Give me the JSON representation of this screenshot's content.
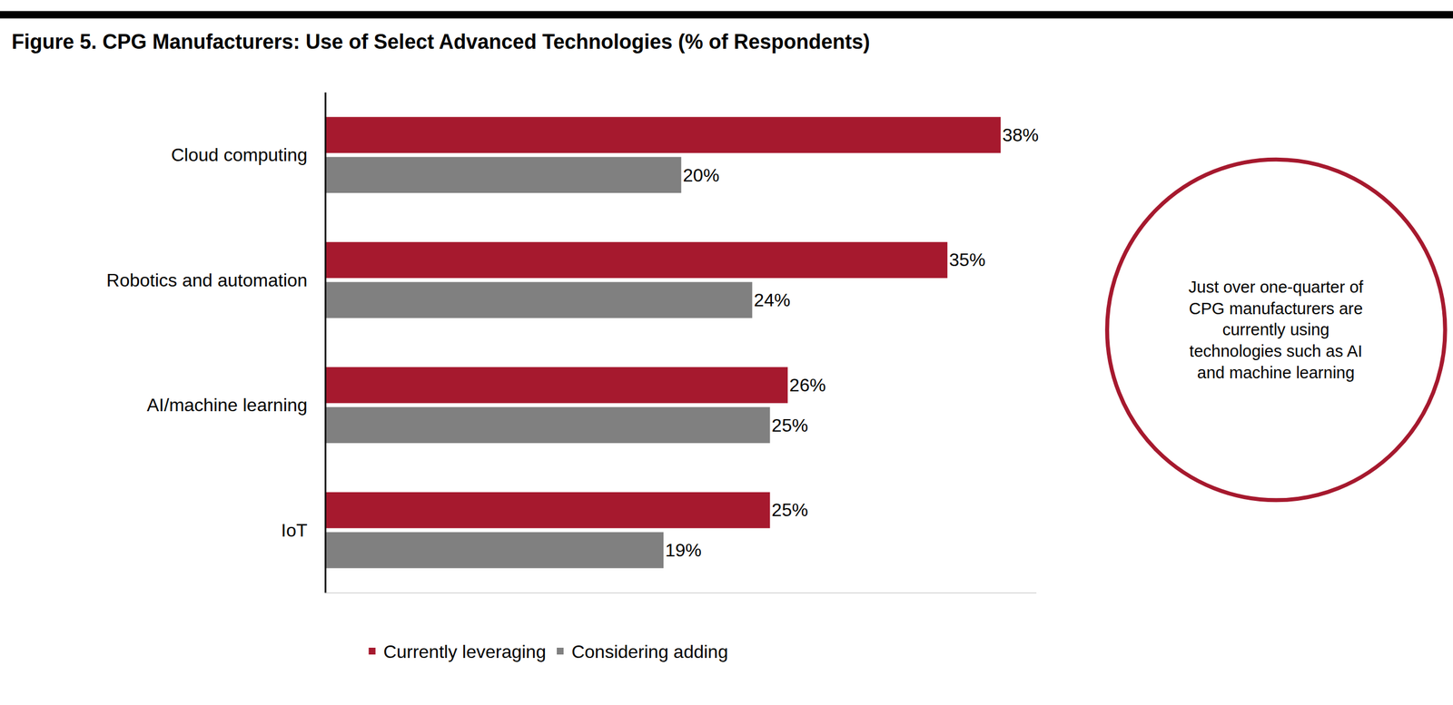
{
  "chart_data": {
    "type": "bar",
    "orientation": "horizontal",
    "title": "Figure 5. CPG Manufacturers: Use of Select Advanced Technologies (% of Respondents)",
    "categories": [
      "Cloud computing",
      "Robotics and automation",
      "AI/machine learning",
      "IoT"
    ],
    "series": [
      {
        "name": "Currently leveraging",
        "color": "#a6192e",
        "values": [
          38,
          35,
          26,
          25
        ],
        "value_labels": [
          "38%",
          "35%",
          "26%",
          "25%"
        ]
      },
      {
        "name": "Considering adding",
        "color": "#808080",
        "values": [
          20,
          24,
          25,
          19
        ],
        "value_labels": [
          "20%",
          "24%",
          "25%",
          "19%"
        ]
      }
    ],
    "xlim": [
      0,
      40
    ],
    "xticks": [],
    "tick_labels": "y",
    "grid": false,
    "data_labels": true,
    "legend": "bottom",
    "annotations": [
      {
        "text": "Just over one-quarter of CPG manufacturers are currently using technologies such as AI and machine learning"
      }
    ]
  }
}
